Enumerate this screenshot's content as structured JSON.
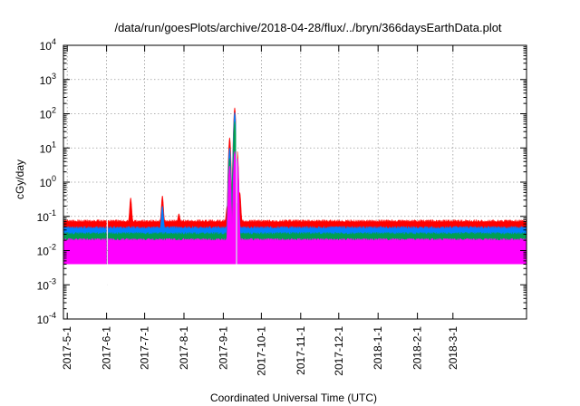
{
  "chart_data": {
    "type": "area",
    "title": "/data/run/goesPlots/archive/2018-04-28/flux/../bryn/366daysEarthData.plot",
    "xlabel": "Coordinated Universal Time (UTC)",
    "ylabel": "cGy/day",
    "y_scale": "log",
    "ylim": [
      0.0001,
      10000
    ],
    "xlim": [
      "2017-04-28",
      "2018-04-28"
    ],
    "grid": true,
    "legend": "none",
    "y_ticks": [
      {
        "base": "10",
        "exp": "-4",
        "value": 0.0001
      },
      {
        "base": "10",
        "exp": "-3",
        "value": 0.001
      },
      {
        "base": "10",
        "exp": "-2",
        "value": 0.01
      },
      {
        "base": "10",
        "exp": "-1",
        "value": 0.1
      },
      {
        "base": "10",
        "exp": "0",
        "value": 1
      },
      {
        "base": "10",
        "exp": "1",
        "value": 10
      },
      {
        "base": "10",
        "exp": "2",
        "value": 100
      },
      {
        "base": "10",
        "exp": "3",
        "value": 1000
      },
      {
        "base": "10",
        "exp": "4",
        "value": 10000
      }
    ],
    "x_ticks": [
      "2017-5-1",
      "2017-6-1",
      "2017-7-1",
      "2017-8-1",
      "2017-9-1",
      "2017-10-1",
      "2017-11-1",
      "2017-12-1",
      "2018-1-1",
      "2018-2-1",
      "2018-3-1"
    ],
    "series": [
      {
        "color": "#ff0000",
        "baseline": 0.07,
        "values": [
          {
            "x": "2017-06-20",
            "y": 0.35
          },
          {
            "x": "2017-07-15",
            "y": 0.4
          },
          {
            "x": "2017-07-28",
            "y": 0.12
          },
          {
            "x": "2017-09-04",
            "y": 0.2
          },
          {
            "x": "2017-09-06",
            "y": 20
          },
          {
            "x": "2017-09-10",
            "y": 150
          },
          {
            "x": "2017-09-12",
            "y": 8
          },
          {
            "x": "2017-09-14",
            "y": 0.5
          }
        ]
      },
      {
        "color": "#0080ff",
        "baseline": 0.045,
        "values": [
          {
            "x": "2017-07-15",
            "y": 0.2
          },
          {
            "x": "2017-09-06",
            "y": 10
          },
          {
            "x": "2017-09-10",
            "y": 110
          },
          {
            "x": "2017-09-12",
            "y": 5
          }
        ]
      },
      {
        "color": "#00a050",
        "baseline": 0.03,
        "values": [
          {
            "x": "2017-09-06",
            "y": 5
          },
          {
            "x": "2017-09-10",
            "y": 60
          }
        ]
      },
      {
        "color": "#ff00ff",
        "baseline": 0.02,
        "floor": 0.004,
        "values": [
          {
            "x": "2017-09-06",
            "y": 3
          },
          {
            "x": "2017-09-10",
            "y": 8
          },
          {
            "x": "2017-09-12",
            "y": 5
          }
        ]
      }
    ],
    "data_gaps": [
      {
        "from": "2017-06-01",
        "to": "2017-06-02"
      },
      {
        "from": "2017-09-11",
        "to": "2017-09-12"
      }
    ]
  },
  "colors": {
    "axis": "#000000",
    "grid": "#9a9a9a"
  }
}
